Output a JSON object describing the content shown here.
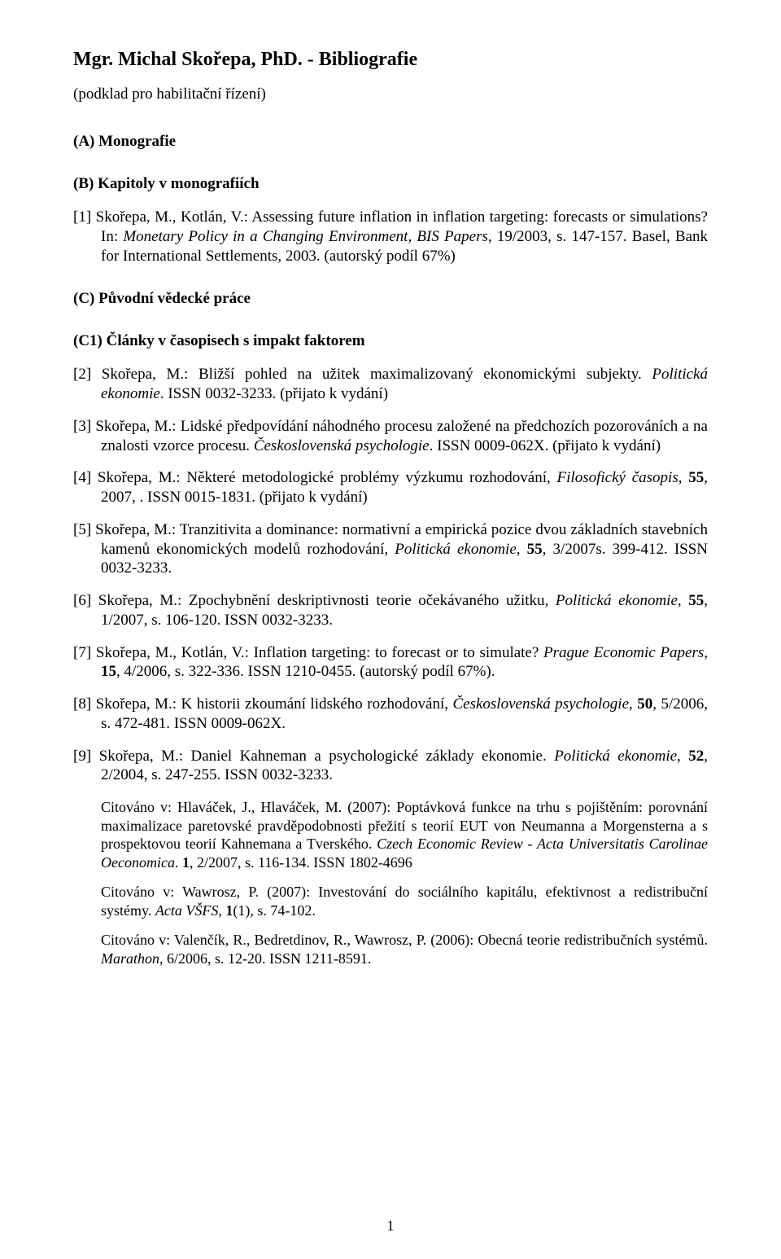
{
  "title": "Mgr. Michal Skořepa, PhD.  -  Bibliografie",
  "subtitle": "(podklad pro habilitační řízení)",
  "sectionA": "(A) Monografie",
  "sectionB": "(B) Kapitoly v monografiích",
  "entryB1_html": "[1] Skořepa, M., Kotlán, V.: Assessing future inflation in inflation targeting: forecasts or simulations? In: <i>Monetary Policy in a Changing Environment, BIS Papers</i>, 19/2003, s. 147-157. Basel, Bank for International Settlements, 2003. (autorský podíl 67%)",
  "sectionC": "(C) Původní vědecké práce",
  "sectionC1": "(C1) Články v časopisech s impakt faktorem",
  "entryC2_html": "[2] Skořepa, M.: Bližší pohled na užitek maximalizovaný ekonomickými subjekty. <i>Politická ekonomie</i>. ISSN 0032-3233. (přijato k vydání)",
  "entryC3_html": "[3] Skořepa, M.: Lidské předpovídání náhodného procesu založené na předchozích pozorováních a na znalosti vzorce procesu. <i>Československá psychologie</i>. ISSN 0009-062X. (přijato k vydání)",
  "entryC4_html": "[4] Skořepa, M.: Některé metodologické problémy výzkumu rozhodování, <i>Filosofický časopis</i>, <b>55</b>, 2007, . ISSN 0015-1831. (přijato k vydání)",
  "entryC5_html": "[5] Skořepa, M.: Tranzitivita a dominance: normativní a empirická pozice dvou základních stavebních kamenů ekonomických modelů rozhodování, <i>Politická ekonomie</i>, <b>55</b>, 3/2007s. 399-412. ISSN 0032-3233.",
  "entryC6_html": "[6] Skořepa, M.: Zpochybnění deskriptivnosti teorie očekávaného užitku, <i>Politická ekonomie</i>, <b>55</b>, 1/2007, s. 106-120. ISSN 0032-3233.",
  "entryC7_html": "[7] Skořepa, M., Kotlán, V.: Inflation targeting: to forecast or to simulate? <i>Prague Economic Papers</i>, <b>15</b>, 4/2006, s. 322-336. ISSN 1210-0455. (autorský podíl 67%).",
  "entryC8_html": "[8] Skořepa, M.: K historii zkoumání lidského rozhodování, <i>Československá psychologie</i>, <b>50</b>, 5/2006, s. 472-481. ISSN 0009-062X.",
  "entryC9_html": "[9] Skořepa, M.: Daniel Kahneman a psychologické základy ekonomie. <i>Politická ekonomie</i>, <b>52</b>, 2/2004, s. 247-255. ISSN 0032-3233.",
  "cite1_html": "Citováno v: Hlaváček, J., Hlaváček, M. (2007): Poptávková funkce na trhu s pojištěním: porovnání maximalizace paretovské pravděpodobnosti přežití s teorií EUT von Neumanna a Morgensterna a s prospektovou teorií Kahnemana a Tverského. <i>Czech Economic Review - Acta Universitatis Carolinae Oeconomica</i>. <b>1</b>, 2/2007, s. 116-134. ISSN 1802-4696",
  "cite2_html": "Citováno v: Wawrosz, P. (2007): Investování do sociálního kapitálu, efektivnost a redistribuční systémy. <i>Acta VŠFS</i>, <b>1</b>(1), s. 74-102.",
  "cite3_html": "Citováno v: Valenčík, R., Bedretdinov, R., Wawrosz, P. (2006): Obecná teorie redistribučních systémů. <i>Marathon</i>, 6/2006, s. 12-20. ISSN 1211-8591.",
  "page_number": "1"
}
